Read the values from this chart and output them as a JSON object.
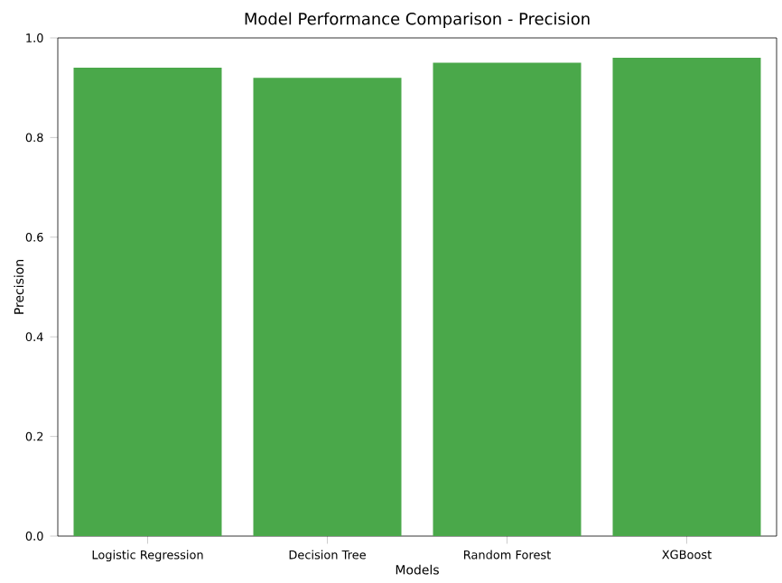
{
  "chart_data": {
    "type": "bar",
    "title": "Model Performance Comparison - Precision",
    "xlabel": "Models",
    "ylabel": "Precision",
    "categories": [
      "Logistic Regression",
      "Decision Tree",
      "Random Forest",
      "XGBoost"
    ],
    "values": [
      0.94,
      0.92,
      0.95,
      0.96
    ],
    "color": "#4aa84a",
    "ylim": [
      0,
      1.0
    ],
    "yticks": [
      {
        "value": 0,
        "label": "0.0"
      },
      {
        "value": 0.2,
        "label": "0.2"
      },
      {
        "value": 0.4,
        "label": "0.4"
      },
      {
        "value": 0.6,
        "label": "0.6"
      },
      {
        "value": 0.8,
        "label": "0.8"
      },
      {
        "value": 1.0,
        "label": "1.0"
      }
    ]
  }
}
